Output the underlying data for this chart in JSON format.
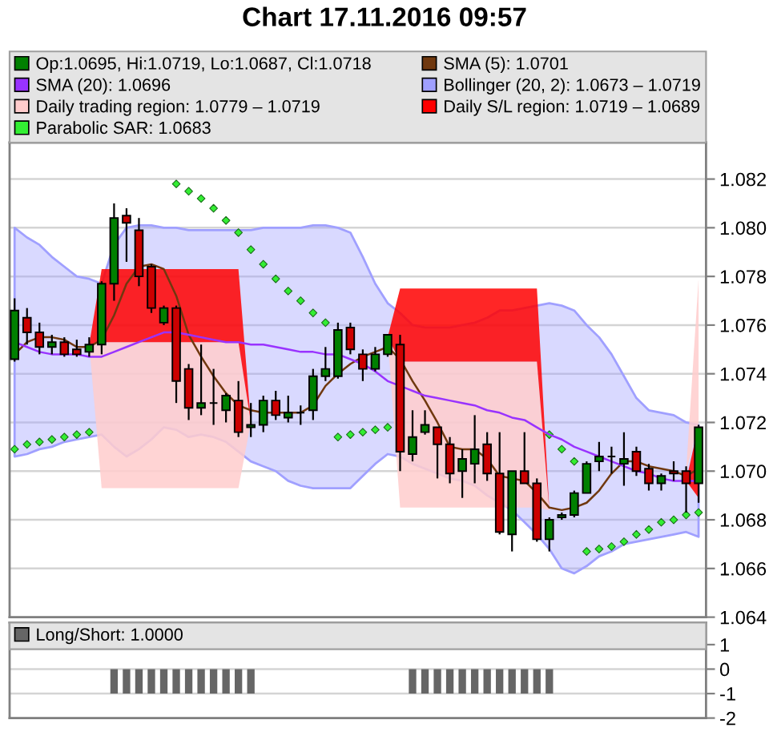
{
  "chart_data": [
    {
      "type": "candlestick",
      "title": "Chart 17.11.2016 09:57",
      "categories": [
        null,
        null,
        null,
        null,
        null,
        null,
        null,
        null,
        null,
        null,
        null,
        null,
        null,
        null,
        null,
        null,
        null,
        null,
        null,
        null,
        null,
        null,
        null,
        null,
        null,
        null,
        null,
        null,
        null,
        null,
        null,
        null,
        null,
        null,
        null,
        null,
        null,
        null,
        null,
        null,
        null,
        null,
        null,
        null,
        null,
        null,
        null,
        null,
        null,
        null,
        null,
        null,
        null,
        null,
        null,
        null
      ],
      "series": [
        {
          "name": "Op:1.0695, Hi:1.0719, Lo:1.0687, Cl:1.0718",
          "type": "candlestick",
          "color": "#008000",
          "ohlc": [
            [
              1.0746,
              1.0771,
              1.0745,
              1.0766
            ],
            [
              1.0763,
              1.0767,
              1.0752,
              1.0757
            ],
            [
              1.0757,
              1.0761,
              1.0748,
              1.0751
            ],
            [
              1.0751,
              1.0756,
              1.0748,
              1.0753
            ],
            [
              1.0753,
              1.0755,
              1.0747,
              1.0748
            ],
            [
              1.075,
              1.0754,
              1.0747,
              1.0748
            ],
            [
              1.0749,
              1.0755,
              1.0747,
              1.0752
            ],
            [
              1.0752,
              1.0778,
              1.0748,
              1.0777
            ],
            [
              1.0777,
              1.081,
              1.077,
              1.0804
            ],
            [
              1.0805,
              1.0808,
              1.0786,
              1.0802
            ],
            [
              1.0799,
              1.0804,
              1.0776,
              1.078
            ],
            [
              1.0784,
              1.0785,
              1.0765,
              1.0767
            ],
            [
              1.0761,
              1.0768,
              1.076,
              1.0767
            ],
            [
              1.0767,
              1.0768,
              1.0728,
              1.0737
            ],
            [
              1.0742,
              1.0744,
              1.0721,
              1.0726
            ],
            [
              1.0726,
              1.0752,
              1.0723,
              1.0728
            ],
            [
              1.0728,
              1.0742,
              1.0719,
              1.0728
            ],
            [
              1.0725,
              1.0732,
              1.072,
              1.0731
            ],
            [
              1.0729,
              1.0737,
              1.0714,
              1.0716
            ],
            [
              1.0718,
              1.0728,
              1.0714,
              1.0719
            ],
            [
              1.0719,
              1.0731,
              1.0716,
              1.0729
            ],
            [
              1.0729,
              1.0733,
              1.0721,
              1.0723
            ],
            [
              1.0722,
              1.0731,
              1.072,
              1.0724
            ],
            [
              1.0724,
              1.0727,
              1.0719,
              1.0724
            ],
            [
              1.0725,
              1.0742,
              1.0721,
              1.0739
            ],
            [
              1.0739,
              1.0751,
              1.0737,
              1.0742
            ],
            [
              1.0739,
              1.0761,
              1.0738,
              1.0758
            ],
            [
              1.0759,
              1.0761,
              1.0748,
              1.075
            ],
            [
              1.0748,
              1.075,
              1.0737,
              1.0742
            ],
            [
              1.0742,
              1.0751,
              1.0741,
              1.0748
            ],
            [
              1.0748,
              1.0756,
              1.0747,
              1.0756
            ],
            [
              1.0752,
              1.0756,
              1.07,
              1.0708
            ],
            [
              1.0707,
              1.0725,
              1.0704,
              1.0714
            ],
            [
              1.0716,
              1.0725,
              1.0715,
              1.0719
            ],
            [
              1.0718,
              1.0718,
              1.0697,
              1.0711
            ],
            [
              1.0711,
              1.0714,
              1.0695,
              1.0699
            ],
            [
              1.07,
              1.0709,
              1.0689,
              1.0705
            ],
            [
              1.0703,
              1.0723,
              1.0695,
              1.0709
            ],
            [
              1.0711,
              1.0716,
              1.0696,
              1.0699
            ],
            [
              1.0699,
              1.0716,
              1.0674,
              1.0675
            ],
            [
              1.0674,
              1.07,
              1.0667,
              1.07
            ],
            [
              1.07,
              1.0716,
              1.0695,
              1.0695
            ],
            [
              1.0695,
              1.0697,
              1.0671,
              1.0672
            ],
            [
              1.0672,
              1.0681,
              1.0667,
              1.068
            ],
            [
              1.0681,
              1.0683,
              1.068,
              1.0682
            ],
            [
              1.0682,
              1.0692,
              1.0681,
              1.0691
            ],
            [
              1.0691,
              1.0704,
              1.0691,
              1.0703
            ],
            [
              1.0704,
              1.0712,
              1.07,
              1.0706
            ],
            [
              1.0706,
              1.071,
              1.0699,
              1.0706
            ],
            [
              1.0703,
              1.0716,
              1.0694,
              1.0705
            ],
            [
              1.0708,
              1.071,
              1.0698,
              1.07
            ],
            [
              1.0701,
              1.0703,
              1.0692,
              1.0695
            ],
            [
              1.0695,
              1.0699,
              1.0692,
              1.0698
            ],
            [
              1.07,
              1.0704,
              1.0696,
              1.0699
            ],
            [
              1.07,
              1.0702,
              1.0683,
              1.0695
            ],
            [
              1.0695,
              1.0719,
              1.0687,
              1.0718
            ]
          ],
          "colors": [
            "#008000",
            "#cc0000",
            "#cc0000",
            "#008000",
            "#cc0000",
            "#cc0000",
            "#008000",
            "#008000",
            "#008000",
            "#cc0000",
            "#cc0000",
            "#cc0000",
            "#008000",
            "#cc0000",
            "#cc0000",
            "#008000",
            "#000000",
            "#008000",
            "#cc0000",
            "#008000",
            "#008000",
            "#cc0000",
            "#008000",
            "#000000",
            "#008000",
            "#008000",
            "#008000",
            "#cc0000",
            "#cc0000",
            "#008000",
            "#008000",
            "#cc0000",
            "#008000",
            "#008000",
            "#cc0000",
            "#cc0000",
            "#008000",
            "#008000",
            "#cc0000",
            "#cc0000",
            "#008000",
            "#cc0000",
            "#cc0000",
            "#008000",
            "#008000",
            "#008000",
            "#008000",
            "#008000",
            "#000000",
            "#008000",
            "#cc0000",
            "#cc0000",
            "#008000",
            "#cc0000",
            "#cc0000",
            "#008000"
          ]
        },
        {
          "name": "SMA (5): 1.0701",
          "type": "line",
          "color": "#70380f",
          "values": [
            1.0748,
            1.0753,
            1.0755,
            1.0755,
            1.0754,
            1.0751,
            1.0751,
            1.0754,
            1.0764,
            1.0777,
            1.0784,
            1.0785,
            1.0783,
            1.0772,
            1.0756,
            1.0747,
            1.0739,
            1.0732,
            1.0727,
            1.0725,
            1.0724,
            1.0724,
            1.0724,
            1.0724,
            1.0727,
            1.0735,
            1.074,
            1.0744,
            1.0747,
            1.0749,
            1.0751,
            1.0746,
            1.0737,
            1.0729,
            1.072,
            1.071,
            1.0709,
            1.0709,
            1.0705,
            1.0698,
            1.0697,
            1.0696,
            1.0691,
            1.0685,
            1.0684,
            1.0685,
            1.0687,
            1.0692,
            1.0699,
            1.0704,
            1.0704,
            1.0702,
            1.0701,
            1.07,
            1.0698,
            1.0701
          ]
        },
        {
          "name": "SMA (20): 1.0696",
          "type": "line",
          "color": "#9933ff",
          "values": [
            1.0753,
            1.0751,
            1.0749,
            1.0748,
            1.0748,
            1.0748,
            1.0747,
            1.0747,
            1.0749,
            1.0751,
            1.0753,
            1.0755,
            1.0757,
            1.0757,
            1.0756,
            1.0755,
            1.0754,
            1.0753,
            1.0753,
            1.0752,
            1.0752,
            1.0751,
            1.075,
            1.0749,
            1.0749,
            1.0748,
            1.0748,
            1.0746,
            1.0744,
            1.0741,
            1.0737,
            1.0735,
            1.0733,
            1.0731,
            1.073,
            1.0729,
            1.0728,
            1.0727,
            1.0725,
            1.0724,
            1.0722,
            1.0721,
            1.0718,
            1.0715,
            1.0713,
            1.071,
            1.0708,
            1.0706,
            1.0704,
            1.0702,
            1.07,
            1.0699,
            1.0697,
            1.0696,
            1.0696,
            1.0696
          ]
        },
        {
          "name": "Bollinger (20, 2): 1.0673 – 1.0719",
          "type": "line",
          "color": "#a0a0ff",
          "line_style": "solid",
          "values": [
            null,
            null,
            null,
            null,
            null,
            null,
            null,
            null,
            null,
            null,
            null,
            null,
            null,
            null,
            null,
            null,
            null,
            null,
            null,
            null,
            null,
            null,
            null,
            null,
            null,
            null,
            null,
            null,
            null,
            null,
            null,
            null,
            null,
            null,
            null,
            null,
            null,
            null,
            null,
            null,
            null,
            null,
            null,
            null,
            null,
            null,
            null,
            null,
            null,
            null,
            null,
            null,
            null,
            null,
            null,
            null
          ],
          "upper": [
            1.08,
            1.0796,
            1.0793,
            1.0788,
            1.0784,
            1.078,
            1.0779,
            1.0777,
            1.0793,
            1.08,
            1.0801,
            1.0801,
            1.08,
            1.08,
            1.0799,
            1.0799,
            1.0799,
            1.0799,
            1.0799,
            1.0799,
            1.08,
            1.08,
            1.08,
            1.08,
            1.0801,
            1.0801,
            1.08,
            1.0798,
            1.0788,
            1.0777,
            1.0769,
            1.0765,
            1.076,
            1.0759,
            1.0759,
            1.0759,
            1.076,
            1.0761,
            1.0763,
            1.0766,
            1.0766,
            1.0767,
            1.0768,
            1.0769,
            1.0768,
            1.0766,
            1.076,
            1.0755,
            1.0748,
            1.0739,
            1.073,
            1.0725,
            1.0724,
            1.0723,
            1.072,
            1.0719
          ],
          "lower": [
            1.0706,
            1.0707,
            1.0709,
            1.071,
            1.0712,
            1.0713,
            1.0714,
            1.0715,
            1.071,
            1.0706,
            1.0709,
            1.0713,
            1.0718,
            1.0717,
            1.0714,
            1.0715,
            1.0714,
            1.0712,
            1.0708,
            1.0704,
            1.0702,
            1.07,
            1.0696,
            1.0694,
            1.0693,
            1.0693,
            1.0693,
            1.0693,
            1.0698,
            1.0703,
            1.0707,
            1.0706,
            1.0703,
            1.0701,
            1.0699,
            1.0697,
            1.0696,
            1.0694,
            1.069,
            1.0687,
            1.0684,
            1.0679,
            1.0674,
            1.0668,
            1.066,
            1.0658,
            1.0661,
            1.0665,
            1.0667,
            1.067,
            1.0671,
            1.0672,
            1.0673,
            1.0674,
            1.0675,
            1.0673
          ]
        },
        {
          "name": "Daily trading region: 1.0779 – 1.0719",
          "type": "line",
          "color": "#ffcccc",
          "values": [
            null,
            null,
            null,
            null,
            null,
            null,
            null,
            null,
            null,
            null,
            null,
            null,
            null,
            null,
            null,
            null,
            null,
            null,
            null,
            null,
            null,
            null,
            null,
            null,
            null,
            null,
            null,
            null,
            null,
            null,
            null,
            null,
            null,
            null,
            null,
            null,
            null,
            null,
            null,
            null,
            null,
            null,
            null,
            null,
            null,
            null,
            null,
            null,
            null,
            null,
            null,
            null,
            null,
            null,
            null,
            null
          ],
          "upper": [
            null,
            null,
            null,
            null,
            null,
            null,
            1.0752,
            1.0753,
            1.0753,
            1.0753,
            1.0753,
            1.0753,
            1.0753,
            1.0753,
            1.0753,
            1.0753,
            1.0753,
            1.0753,
            1.0753,
            1.072,
            null,
            null,
            null,
            null,
            null,
            null,
            null,
            null,
            null,
            null,
            1.0755,
            1.0745,
            1.0745,
            1.0745,
            1.0745,
            1.0745,
            1.0745,
            1.0745,
            1.0745,
            1.0745,
            1.0745,
            1.0745,
            1.0745,
            1.0684,
            null,
            null,
            null,
            null,
            null,
            null,
            null,
            null,
            null,
            null,
            1.07,
            1.0779
          ],
          "lower": [
            null,
            null,
            null,
            null,
            null,
            null,
            1.0752,
            1.0693,
            1.0693,
            1.0693,
            1.0693,
            1.0693,
            1.0693,
            1.0693,
            1.0693,
            1.0693,
            1.0693,
            1.0693,
            1.0693,
            1.072,
            null,
            null,
            null,
            null,
            null,
            null,
            null,
            null,
            null,
            null,
            1.0755,
            1.0685,
            1.0685,
            1.0685,
            1.0685,
            1.0685,
            1.0685,
            1.0685,
            1.0685,
            1.0685,
            1.0685,
            1.0685,
            1.0685,
            1.0684,
            null,
            null,
            null,
            null,
            null,
            null,
            null,
            null,
            null,
            null,
            1.07,
            1.0719
          ]
        },
        {
          "name": "Daily S/L region: 1.0719 – 1.0689",
          "type": "line",
          "color": "#ff0000",
          "values": [
            null,
            null,
            null,
            null,
            null,
            null,
            null,
            null,
            null,
            null,
            null,
            null,
            null,
            null,
            null,
            null,
            null,
            null,
            null,
            null,
            null,
            null,
            null,
            null,
            null,
            null,
            null,
            null,
            null,
            null,
            null,
            null,
            null,
            null,
            null,
            null,
            null,
            null,
            null,
            null,
            null,
            null,
            null,
            null,
            null,
            null,
            null,
            null,
            null,
            null,
            null,
            null,
            null,
            null,
            null,
            null
          ],
          "upper": [
            null,
            null,
            null,
            null,
            null,
            null,
            1.0752,
            1.0783,
            1.0783,
            1.0783,
            1.0783,
            1.0783,
            1.0783,
            1.0783,
            1.0783,
            1.0783,
            1.0783,
            1.0783,
            1.0783,
            1.072,
            null,
            null,
            null,
            null,
            null,
            null,
            null,
            null,
            null,
            null,
            1.0755,
            1.0775,
            1.0775,
            1.0775,
            1.0775,
            1.0775,
            1.0775,
            1.0775,
            1.0775,
            1.0775,
            1.0775,
            1.0775,
            1.0775,
            1.0684,
            null,
            null,
            null,
            null,
            null,
            null,
            null,
            null,
            null,
            null,
            1.0696,
            1.0719
          ],
          "lower": [
            null,
            null,
            null,
            null,
            null,
            null,
            1.0752,
            1.0753,
            1.0753,
            1.0753,
            1.0753,
            1.0753,
            1.0753,
            1.0753,
            1.0753,
            1.0753,
            1.0753,
            1.0753,
            1.0753,
            1.072,
            null,
            null,
            null,
            null,
            null,
            null,
            null,
            null,
            null,
            null,
            1.0755,
            1.0745,
            1.0745,
            1.0745,
            1.0745,
            1.0745,
            1.0745,
            1.0745,
            1.0745,
            1.0745,
            1.0745,
            1.0745,
            1.0745,
            1.0684,
            null,
            null,
            null,
            null,
            null,
            null,
            null,
            null,
            null,
            null,
            1.0696,
            1.0689
          ]
        },
        {
          "name": "Parabolic SAR: 1.0683",
          "type": "scatter",
          "color": "#33ee33",
          "marker": "diamond",
          "values": [
            1.0709,
            1.0711,
            1.0712,
            1.0713,
            1.0714,
            1.0715,
            1.0716,
            null,
            null,
            null,
            null,
            null,
            null,
            1.0818,
            1.0815,
            1.0812,
            1.0808,
            1.0803,
            1.0798,
            1.0791,
            1.0785,
            1.0779,
            1.0774,
            1.077,
            1.0765,
            1.0761,
            1.0714,
            1.0715,
            1.0716,
            1.0717,
            1.0718,
            null,
            null,
            null,
            null,
            null,
            null,
            null,
            null,
            null,
            null,
            null,
            null,
            1.0715,
            1.0709,
            1.0704,
            1.0667,
            1.0668,
            1.0669,
            1.0671,
            1.0674,
            1.0676,
            1.0679,
            1.068,
            1.0682,
            1.0683
          ]
        }
      ],
      "ylim": [
        1.064,
        1.0835
      ],
      "yticks": [
        1.064,
        1.066,
        1.068,
        {
          "value": 1.07,
          "label": "1.070"
        },
        1.072,
        1.074,
        1.076,
        1.078,
        {
          "value": 1.08,
          "label": "1.080"
        },
        1.082
      ],
      "grid": "y",
      "legend": "top",
      "tick_labels": "y"
    },
    {
      "type": "bar",
      "categories": [
        null,
        null,
        null,
        null,
        null,
        null,
        null,
        null,
        null,
        null,
        null,
        null,
        null,
        null,
        null,
        null,
        null,
        null,
        null,
        null,
        null,
        null,
        null,
        null,
        null,
        null,
        null,
        null,
        null,
        null,
        null,
        null,
        null,
        null,
        null,
        null,
        null,
        null,
        null,
        null,
        null,
        null,
        null,
        null,
        null,
        null,
        null,
        null,
        null,
        null,
        null,
        null,
        null,
        null,
        null,
        null
      ],
      "series": [
        {
          "name": "Long/Short: 1.0000",
          "color": "#666666",
          "values": [
            null,
            null,
            null,
            null,
            null,
            null,
            null,
            null,
            -1,
            -1,
            -1,
            -1,
            -1,
            -1,
            -1,
            -1,
            -1,
            -1,
            -1,
            -1,
            null,
            null,
            null,
            null,
            null,
            null,
            null,
            null,
            null,
            null,
            null,
            null,
            -1,
            -1,
            -1,
            -1,
            -1,
            -1,
            -1,
            -1,
            -1,
            -1,
            -1,
            -1,
            null,
            null,
            null,
            null,
            null,
            null,
            null,
            null,
            null,
            null,
            null,
            null
          ]
        }
      ],
      "ylim": [
        -2,
        1.9
      ],
      "yticks": [
        -2,
        -1,
        0,
        1
      ],
      "grid": "y",
      "legend": "top",
      "tick_labels": "y"
    }
  ]
}
